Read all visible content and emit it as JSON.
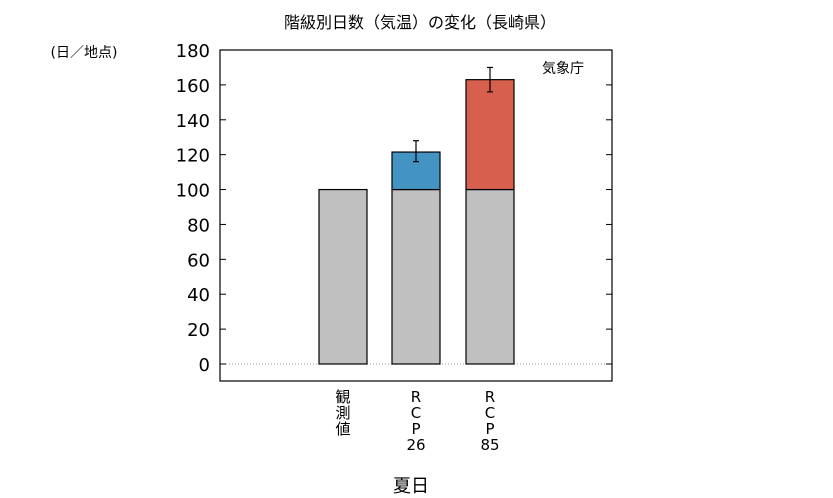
{
  "chart_data": {
    "type": "bar",
    "title": "階級別日数（気温）の変化（長崎県）",
    "ylabel": "(日／地点)",
    "xlabel": "夏日",
    "source": "気象庁",
    "ylim": [
      0,
      180
    ],
    "yticks": [
      0,
      20,
      40,
      60,
      80,
      100,
      120,
      140,
      160,
      180
    ],
    "categories": [
      "観測値",
      "RCP26",
      "RCP85"
    ],
    "category_label_lines": [
      [
        "観",
        "測",
        "値"
      ],
      [
        "R",
        "C",
        "P",
        "26"
      ],
      [
        "R",
        "C",
        "P",
        "85"
      ]
    ],
    "series": [
      {
        "values": [
          100,
          100,
          100
        ],
        "color": "#c0c0c0"
      },
      {
        "values": [
          0,
          21.5,
          63
        ],
        "color": "#4393c3"
      }
    ],
    "increment_colors": [
      "#c0c0c0",
      "#4393c3",
      "#d6604d"
    ],
    "totals": [
      100,
      121.5,
      163
    ],
    "error_bars": [
      null,
      [
        116,
        128
      ],
      [
        156,
        170
      ]
    ]
  }
}
